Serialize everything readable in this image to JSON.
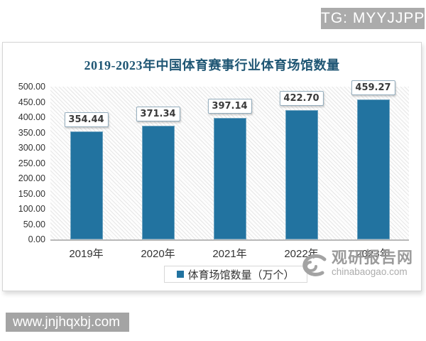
{
  "badges": {
    "tg": "TG: MYYJJPP"
  },
  "chart_data": {
    "type": "bar",
    "title": "2019-2023年中国体育赛事行业体育场馆数量",
    "categories": [
      "2019年",
      "2020年",
      "2021年",
      "2022年",
      "2023年"
    ],
    "values": [
      354.44,
      371.34,
      397.14,
      422.7,
      459.27
    ],
    "value_labels": [
      "354.44",
      "371.34",
      "397.14",
      "422.70",
      "459.27"
    ],
    "series_name": "体育场馆数量（万个）",
    "xlabel": "",
    "ylabel": "",
    "ylim": [
      0,
      500
    ],
    "y_tick_step": 50,
    "y_tick_labels": [
      "500.00",
      "450.00",
      "400.00",
      "350.00",
      "300.00",
      "250.00",
      "200.00",
      "150.00",
      "100.00",
      "50.00",
      "0.00"
    ],
    "grid": false,
    "legend_position": "bottom",
    "bar_color": "#2273a0"
  },
  "watermark": {
    "name": "观研报告网",
    "url": "chinabaogao.com"
  },
  "footer": {
    "site_url": "www.jnjhqxbj.com"
  },
  "colors": {
    "title": "#1f5674",
    "bar": "#2273a0",
    "badge_bg": "#ababab",
    "watermark_gray": "#9b9b9b",
    "footer_bar_bg": "#a4a4a4"
  }
}
